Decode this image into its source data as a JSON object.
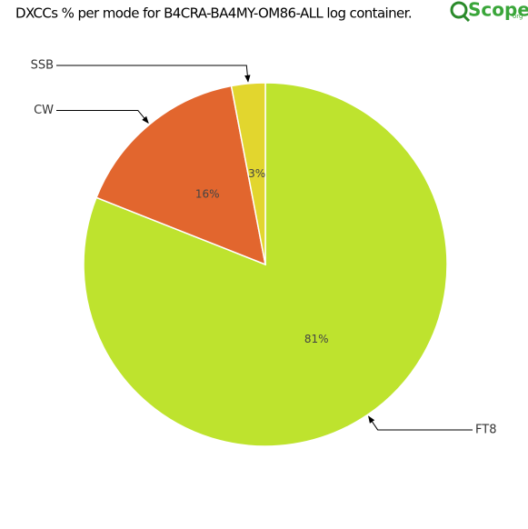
{
  "chart_data": {
    "type": "pie",
    "title": "DXCCs % per mode for B4CRA-BA4MY-OM86-ALL log container.",
    "logo": {
      "text": "Scope",
      "suffix": "org"
    },
    "categories": [
      "FT8",
      "CW",
      "SSB"
    ],
    "values": [
      81,
      16,
      3
    ],
    "value_labels": [
      "81%",
      "16%",
      "3%"
    ],
    "colors": [
      "#bee32e",
      "#e2662e",
      "#e2d62e"
    ]
  }
}
